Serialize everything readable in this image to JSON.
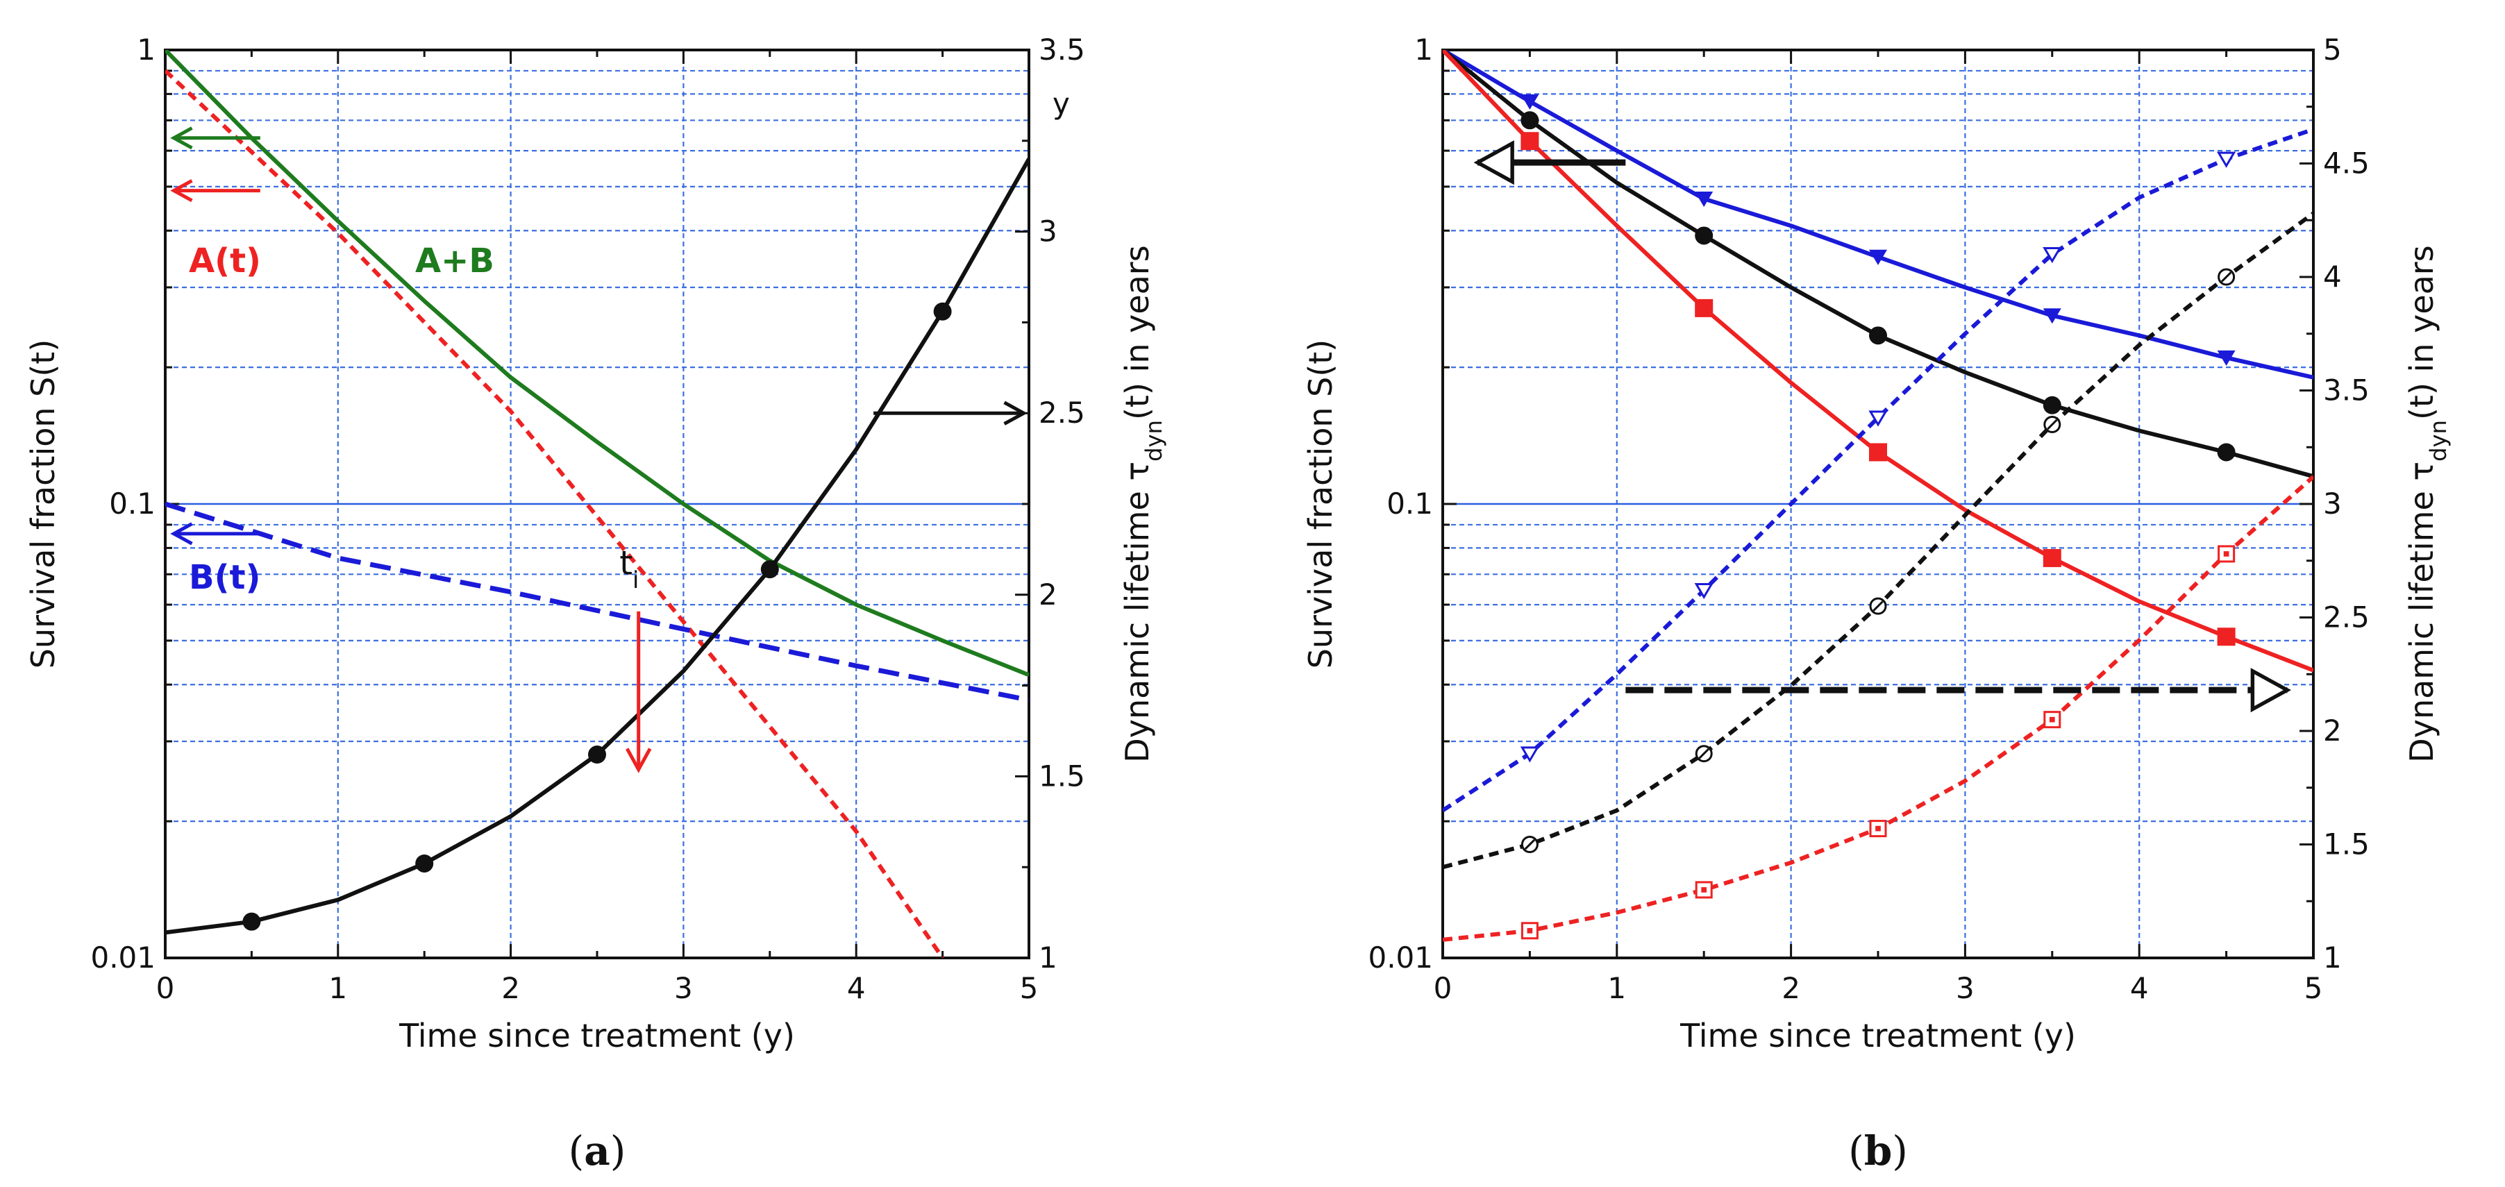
{
  "chart_data": [
    {
      "panel": "a",
      "type": "line",
      "caption_open": "(",
      "caption_bold": "a",
      "caption_close": ")",
      "xlabel": "Time since treatment (y)",
      "ylabel_left": "Survival fraction S(t)",
      "ylabel_right_parts": [
        "Dynamic lifetime τ",
        "dyn",
        "(t) in years"
      ],
      "x_ticks": [
        "0",
        "1",
        "2",
        "3",
        "4",
        "5"
      ],
      "y_left_ticks": [
        "0.01",
        "0.1",
        "1"
      ],
      "y_right_ticks": [
        "1",
        "1.5",
        "2",
        "2.5",
        "3",
        "3.5"
      ],
      "y_right_unit": "y",
      "xlim": [
        0,
        5
      ],
      "ylim_left": [
        0.01,
        1
      ],
      "ylim_right": [
        1,
        3.5
      ],
      "series": [
        {
          "name": "A+B",
          "label": "A+B",
          "axis": "left",
          "color": "#1e7b1e",
          "style": "solid",
          "x": [
            0,
            0.5,
            1,
            1.5,
            2,
            2.5,
            3,
            3.5,
            4,
            4.5,
            5
          ],
          "y": [
            1.0,
            0.64,
            0.42,
            0.28,
            0.19,
            0.137,
            0.1,
            0.075,
            0.06,
            0.05,
            0.042
          ]
        },
        {
          "name": "A(t)",
          "label": "A(t)",
          "axis": "left",
          "color": "#ee2222",
          "style": "dotted",
          "x": [
            0,
            1,
            2,
            3,
            4,
            4.5
          ],
          "y": [
            0.9,
            0.395,
            0.16,
            0.055,
            0.019,
            0.01
          ]
        },
        {
          "name": "B(t)",
          "label": "B(t)",
          "axis": "left",
          "color": "#1a1ad8",
          "style": "dashed",
          "x": [
            0,
            1,
            2,
            3,
            4,
            5
          ],
          "y": [
            0.1,
            0.076,
            0.064,
            0.053,
            0.044,
            0.037
          ]
        },
        {
          "name": "τdyn",
          "label": "",
          "axis": "right",
          "color": "#111111",
          "style": "solid",
          "x": [
            0,
            0.5,
            1,
            1.5,
            2,
            2.5,
            3,
            3.5,
            4,
            4.5,
            5
          ],
          "y": [
            1.07,
            1.1,
            1.16,
            1.26,
            1.39,
            1.56,
            1.79,
            2.07,
            2.4,
            2.78,
            3.2
          ],
          "markers_x": [
            0.5,
            1.5,
            2.5,
            3.5,
            4.5
          ],
          "markers_y": [
            1.1,
            1.26,
            1.56,
            2.07,
            2.78
          ],
          "marker": "filled-circle"
        }
      ],
      "annotations": [
        {
          "text": "t",
          "sub": "i",
          "x": 2.75,
          "y": 0.07
        }
      ]
    },
    {
      "panel": "b",
      "type": "line",
      "caption_open": "(",
      "caption_bold": "b",
      "caption_close": ")",
      "xlabel": "Time since treatment (y)",
      "ylabel_left": "Survival fraction S(t)",
      "ylabel_right_parts": [
        "Dynamic lifetime τ",
        "dyn",
        "(t) in years"
      ],
      "x_ticks": [
        "0",
        "1",
        "2",
        "3",
        "4",
        "5"
      ],
      "y_left_ticks": [
        "0.01",
        "0.1",
        "1"
      ],
      "y_right_ticks": [
        "1",
        "1.5",
        "2",
        "2.5",
        "3",
        "3.5",
        "4",
        "4.5",
        "5"
      ],
      "xlim": [
        0,
        5
      ],
      "ylim_left": [
        0.01,
        1
      ],
      "ylim_right": [
        1,
        5
      ],
      "series": [
        {
          "name": "blue S(t)",
          "axis": "left",
          "color": "#1a1ad8",
          "style": "solid",
          "x": [
            0,
            0.5,
            1,
            1.5,
            2,
            2.5,
            3,
            3.5,
            4,
            4.5,
            5
          ],
          "y": [
            1.0,
            0.77,
            0.6,
            0.47,
            0.41,
            0.35,
            0.3,
            0.26,
            0.235,
            0.21,
            0.19
          ],
          "markers_x": [
            0.5,
            1.5,
            2.5,
            3.5,
            4.5
          ],
          "markers_y": [
            0.77,
            0.47,
            0.35,
            0.26,
            0.21
          ],
          "marker": "filled-triangle-down"
        },
        {
          "name": "black S(t)",
          "axis": "left",
          "color": "#111111",
          "style": "solid",
          "x": [
            0,
            0.5,
            1,
            1.5,
            2,
            2.5,
            3,
            3.5,
            4,
            4.5,
            5
          ],
          "y": [
            1.0,
            0.7,
            0.51,
            0.39,
            0.3,
            0.235,
            0.195,
            0.165,
            0.145,
            0.13,
            0.115
          ],
          "markers_x": [
            0.5,
            1.5,
            2.5,
            3.5,
            4.5
          ],
          "markers_y": [
            0.7,
            0.39,
            0.235,
            0.165,
            0.13
          ],
          "marker": "filled-circle"
        },
        {
          "name": "red S(t)",
          "axis": "left",
          "color": "#ee2222",
          "style": "solid",
          "x": [
            0,
            0.5,
            1,
            1.5,
            2,
            2.5,
            3,
            3.5,
            4,
            4.5,
            5
          ],
          "y": [
            1.0,
            0.63,
            0.41,
            0.27,
            0.185,
            0.13,
            0.097,
            0.076,
            0.061,
            0.051,
            0.043
          ],
          "markers_x": [
            0.5,
            1.5,
            2.5,
            3.5,
            4.5
          ],
          "markers_y": [
            0.63,
            0.27,
            0.13,
            0.076,
            0.051
          ],
          "marker": "filled-square"
        },
        {
          "name": "blue τdyn",
          "axis": "right",
          "color": "#1a1ad8",
          "style": "dotted",
          "x": [
            0,
            0.5,
            1,
            1.5,
            2,
            2.5,
            3,
            3.5,
            4,
            4.5,
            5
          ],
          "y": [
            1.65,
            1.9,
            2.25,
            2.62,
            3.0,
            3.38,
            3.75,
            4.1,
            4.35,
            4.52,
            4.65
          ],
          "markers_x": [
            0.5,
            1.5,
            2.5,
            3.5,
            4.5
          ],
          "markers_y": [
            1.9,
            2.62,
            3.38,
            4.1,
            4.52
          ],
          "marker": "open-triangle-down"
        },
        {
          "name": "black τdyn",
          "axis": "right",
          "color": "#111111",
          "style": "dotted",
          "x": [
            0,
            0.5,
            1,
            1.5,
            2,
            2.5,
            3,
            3.5,
            4,
            4.5,
            5
          ],
          "y": [
            1.4,
            1.5,
            1.65,
            1.9,
            2.2,
            2.55,
            2.95,
            3.35,
            3.7,
            4.0,
            4.28
          ],
          "markers_x": [
            0.5,
            1.5,
            2.5,
            3.5,
            4.5
          ],
          "markers_y": [
            1.5,
            1.9,
            2.55,
            3.35,
            4.0
          ],
          "marker": "open-circle"
        },
        {
          "name": "red τdyn",
          "axis": "right",
          "color": "#ee2222",
          "style": "dotted",
          "x": [
            0,
            0.5,
            1,
            1.5,
            2,
            2.5,
            3,
            3.5,
            4,
            4.5,
            5
          ],
          "y": [
            1.08,
            1.12,
            1.2,
            1.3,
            1.42,
            1.57,
            1.78,
            2.05,
            2.4,
            2.78,
            3.12
          ],
          "markers_x": [
            0.5,
            1.5,
            2.5,
            3.5,
            4.5
          ],
          "markers_y": [
            1.12,
            1.3,
            1.57,
            2.05,
            2.78
          ],
          "marker": "open-square"
        }
      ]
    }
  ]
}
